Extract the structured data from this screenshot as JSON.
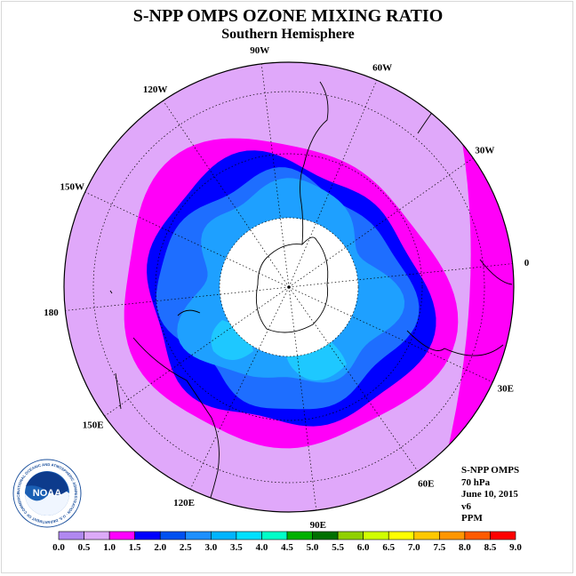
{
  "title": "S-NPP OMPS OZONE MIXING RATIO",
  "subtitle": "Southern Hemisphere",
  "map": {
    "projection": "polar stereographic (south pole)",
    "longitude_labels": [
      {
        "text": "90W",
        "angle": -97
      },
      {
        "text": "60W",
        "angle": -67
      },
      {
        "text": "30W",
        "angle": -35
      },
      {
        "text": "0",
        "angle": -6
      },
      {
        "text": "30E",
        "angle": 25
      },
      {
        "text": "60E",
        "angle": 55
      },
      {
        "text": "90E",
        "angle": 83
      },
      {
        "text": "120E",
        "angle": 116
      },
      {
        "text": "150E",
        "angle": 145
      },
      {
        "text": "180",
        "angle": 174
      },
      {
        "text": "150W",
        "angle": -155
      },
      {
        "text": "120W",
        "angle": -124
      }
    ],
    "missing_data_region": "polar night (white)"
  },
  "info": {
    "instrument": "S-NPP OMPS",
    "level": "70 hPa",
    "date": "June 10, 2015",
    "version": "v6",
    "units": "PPM"
  },
  "colorbar": {
    "ticks": [
      "0.0",
      "0.5",
      "1.0",
      "1.5",
      "2.0",
      "2.5",
      "3.0",
      "3.5",
      "4.0",
      "4.5",
      "5.0",
      "5.5",
      "6.0",
      "6.5",
      "7.0",
      "7.5",
      "8.0",
      "8.5",
      "9.0"
    ],
    "colors": [
      "#b088f0",
      "#dcaaf8",
      "#ff00ff",
      "#0000ff",
      "#0050f0",
      "#1e90ff",
      "#00b4ff",
      "#00e0ff",
      "#00ffc8",
      "#00b000",
      "#007000",
      "#90d000",
      "#d0ff00",
      "#ffff00",
      "#ffc800",
      "#ff9600",
      "#ff5a00",
      "#ff0000",
      "#8b5a3c"
    ]
  },
  "contour_colors": {
    "outer": "#e0a8fa",
    "magenta": "#ff00f8",
    "blue": "#0000ff",
    "mid_blue": "#1e6eff",
    "light_blue": "#1ea0ff",
    "sky": "#1ec8ff",
    "night": "#ffffff"
  },
  "logo": {
    "name": "NOAA",
    "ring_text": "NATIONAL OCEANIC AND ATMOSPHERIC ADMINISTRATION · U.S. DEPARTMENT OF COMMERCE"
  }
}
